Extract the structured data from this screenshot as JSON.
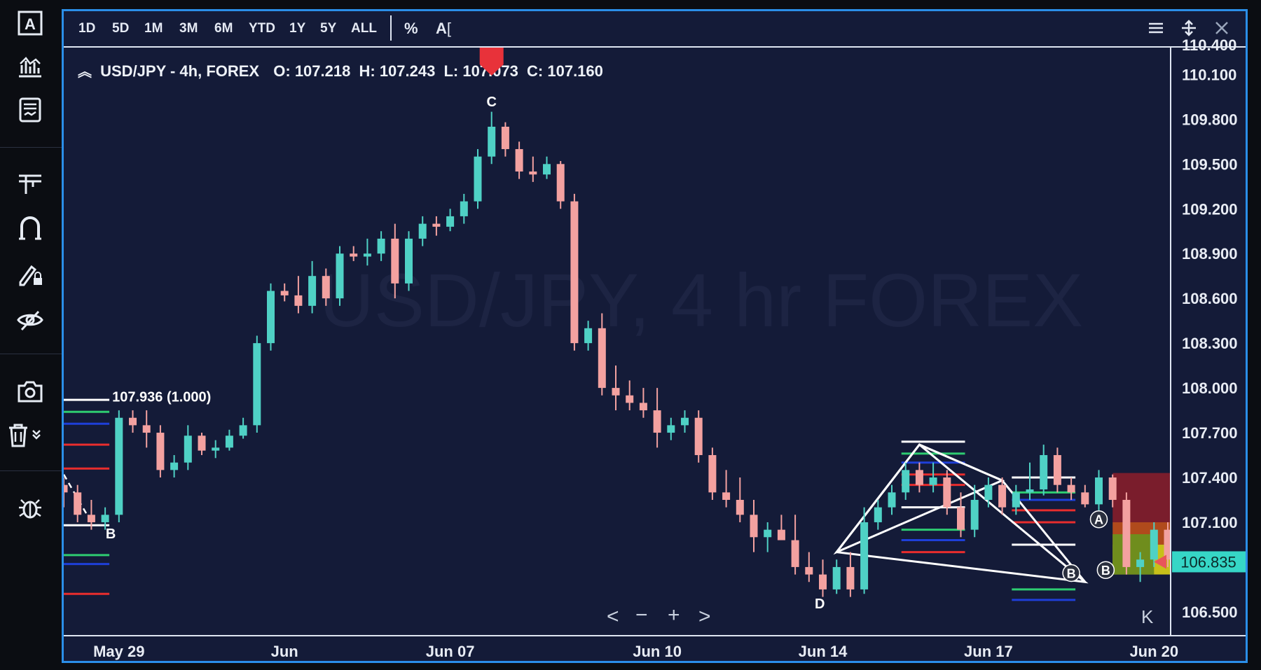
{
  "toolbar": {
    "timeframes": [
      "1D",
      "5D",
      "1M",
      "3M",
      "6M",
      "YTD",
      "1Y",
      "5Y",
      "ALL"
    ],
    "percent_label": "%",
    "text_tool_label": "A"
  },
  "sidebar": {
    "icons": [
      "text-tool-icon",
      "chart-type-icon",
      "indicators-icon",
      "line-tool-icon",
      "magnet-icon",
      "lock-drawing-icon",
      "hide-drawings-icon",
      "camera-icon",
      "trash-icon",
      "bug-icon"
    ]
  },
  "legend": {
    "symbol": "USD/JPY - 4h, FOREX",
    "open_label": "O:",
    "open": "107.218",
    "high_label": "H:",
    "high": "107.243",
    "low_label": "L:",
    "low": "107.073",
    "close_label": "C:",
    "close": "107.160"
  },
  "watermark": "USD/JPY, 4 hr FOREX",
  "nav": {
    "left": "<",
    "minus": "−",
    "plus": "+",
    "right": ">",
    "end": "K"
  },
  "chart_data": {
    "type": "candlestick",
    "symbol": "USD/JPY",
    "interval": "4h",
    "last_price": "106.835",
    "y_ticks": [
      "110.100",
      "109.800",
      "109.500",
      "109.200",
      "108.900",
      "108.600",
      "108.300",
      "108.000",
      "107.700",
      "107.400",
      "107.100",
      "106.500"
    ],
    "y_top_cut": "110.400",
    "ylim": [
      106.34,
      110.28
    ],
    "x_ticks": [
      {
        "label": "May 29",
        "idx": 4
      },
      {
        "label": "Jun",
        "idx": 16
      },
      {
        "label": "Jun 07",
        "idx": 28
      },
      {
        "label": "Jun 10",
        "idx": 43
      },
      {
        "label": "Jun 14",
        "idx": 55
      },
      {
        "label": "Jun 17",
        "idx": 67
      },
      {
        "label": "Jun 20",
        "idx": 79
      }
    ],
    "candles": [
      {
        "o": 107.35,
        "h": 107.4,
        "l": 107.2,
        "c": 107.3
      },
      {
        "o": 107.3,
        "h": 107.35,
        "l": 107.1,
        "c": 107.15
      },
      {
        "o": 107.15,
        "h": 107.25,
        "l": 107.05,
        "c": 107.1
      },
      {
        "o": 107.1,
        "h": 107.2,
        "l": 107.05,
        "c": 107.15
      },
      {
        "o": 107.15,
        "h": 107.85,
        "l": 107.1,
        "c": 107.8
      },
      {
        "o": 107.8,
        "h": 107.85,
        "l": 107.7,
        "c": 107.75
      },
      {
        "o": 107.75,
        "h": 107.85,
        "l": 107.6,
        "c": 107.7
      },
      {
        "o": 107.7,
        "h": 107.75,
        "l": 107.4,
        "c": 107.45
      },
      {
        "o": 107.45,
        "h": 107.55,
        "l": 107.4,
        "c": 107.5
      },
      {
        "o": 107.5,
        "h": 107.75,
        "l": 107.45,
        "c": 107.68
      },
      {
        "o": 107.68,
        "h": 107.7,
        "l": 107.55,
        "c": 107.58
      },
      {
        "o": 107.58,
        "h": 107.65,
        "l": 107.53,
        "c": 107.6
      },
      {
        "o": 107.6,
        "h": 107.72,
        "l": 107.58,
        "c": 107.68
      },
      {
        "o": 107.68,
        "h": 107.8,
        "l": 107.66,
        "c": 107.75
      },
      {
        "o": 107.75,
        "h": 108.35,
        "l": 107.7,
        "c": 108.3
      },
      {
        "o": 108.3,
        "h": 108.7,
        "l": 108.25,
        "c": 108.65
      },
      {
        "o": 108.65,
        "h": 108.7,
        "l": 108.58,
        "c": 108.62
      },
      {
        "o": 108.62,
        "h": 108.75,
        "l": 108.5,
        "c": 108.55
      },
      {
        "o": 108.55,
        "h": 108.85,
        "l": 108.5,
        "c": 108.75
      },
      {
        "o": 108.75,
        "h": 108.8,
        "l": 108.55,
        "c": 108.6
      },
      {
        "o": 108.6,
        "h": 108.95,
        "l": 108.55,
        "c": 108.9
      },
      {
        "o": 108.9,
        "h": 108.95,
        "l": 108.85,
        "c": 108.88
      },
      {
        "o": 108.88,
        "h": 109.0,
        "l": 108.82,
        "c": 108.9
      },
      {
        "o": 108.9,
        "h": 109.05,
        "l": 108.85,
        "c": 109.0
      },
      {
        "o": 109.0,
        "h": 109.1,
        "l": 108.6,
        "c": 108.7
      },
      {
        "o": 108.7,
        "h": 109.05,
        "l": 108.65,
        "c": 109.0
      },
      {
        "o": 109.0,
        "h": 109.15,
        "l": 108.95,
        "c": 109.1
      },
      {
        "o": 109.1,
        "h": 109.15,
        "l": 109.02,
        "c": 109.08
      },
      {
        "o": 109.08,
        "h": 109.2,
        "l": 109.05,
        "c": 109.15
      },
      {
        "o": 109.15,
        "h": 109.3,
        "l": 109.1,
        "c": 109.25
      },
      {
        "o": 109.25,
        "h": 109.6,
        "l": 109.2,
        "c": 109.55
      },
      {
        "o": 109.55,
        "h": 109.85,
        "l": 109.5,
        "c": 109.75
      },
      {
        "o": 109.75,
        "h": 109.78,
        "l": 109.55,
        "c": 109.6
      },
      {
        "o": 109.6,
        "h": 109.65,
        "l": 109.4,
        "c": 109.45
      },
      {
        "o": 109.45,
        "h": 109.55,
        "l": 109.38,
        "c": 109.43
      },
      {
        "o": 109.43,
        "h": 109.55,
        "l": 109.4,
        "c": 109.5
      },
      {
        "o": 109.5,
        "h": 109.52,
        "l": 109.2,
        "c": 109.25
      },
      {
        "o": 109.25,
        "h": 109.3,
        "l": 108.25,
        "c": 108.3
      },
      {
        "o": 108.3,
        "h": 108.45,
        "l": 108.25,
        "c": 108.4
      },
      {
        "o": 108.4,
        "h": 108.5,
        "l": 107.95,
        "c": 108.0
      },
      {
        "o": 108.0,
        "h": 108.15,
        "l": 107.85,
        "c": 107.95
      },
      {
        "o": 107.95,
        "h": 108.05,
        "l": 107.85,
        "c": 107.9
      },
      {
        "o": 107.9,
        "h": 108.0,
        "l": 107.8,
        "c": 107.85
      },
      {
        "o": 107.85,
        "h": 108.0,
        "l": 107.6,
        "c": 107.7
      },
      {
        "o": 107.7,
        "h": 107.8,
        "l": 107.65,
        "c": 107.75
      },
      {
        "o": 107.75,
        "h": 107.85,
        "l": 107.7,
        "c": 107.8
      },
      {
        "o": 107.8,
        "h": 107.85,
        "l": 107.5,
        "c": 107.55
      },
      {
        "o": 107.55,
        "h": 107.6,
        "l": 107.25,
        "c": 107.3
      },
      {
        "o": 107.3,
        "h": 107.45,
        "l": 107.2,
        "c": 107.25
      },
      {
        "o": 107.25,
        "h": 107.4,
        "l": 107.1,
        "c": 107.15
      },
      {
        "o": 107.15,
        "h": 107.25,
        "l": 106.9,
        "c": 107.0
      },
      {
        "o": 107.0,
        "h": 107.1,
        "l": 106.9,
        "c": 107.05
      },
      {
        "o": 107.05,
        "h": 107.15,
        "l": 107.0,
        "c": 106.98
      },
      {
        "o": 106.98,
        "h": 107.15,
        "l": 106.75,
        "c": 106.8
      },
      {
        "o": 106.8,
        "h": 106.9,
        "l": 106.7,
        "c": 106.75
      },
      {
        "o": 106.75,
        "h": 106.85,
        "l": 106.6,
        "c": 106.65
      },
      {
        "o": 106.65,
        "h": 106.85,
        "l": 106.62,
        "c": 106.8
      },
      {
        "o": 106.8,
        "h": 106.9,
        "l": 106.6,
        "c": 106.65
      },
      {
        "o": 106.65,
        "h": 107.2,
        "l": 106.62,
        "c": 107.1
      },
      {
        "o": 107.1,
        "h": 107.25,
        "l": 107.05,
        "c": 107.2
      },
      {
        "o": 107.2,
        "h": 107.35,
        "l": 107.15,
        "c": 107.3
      },
      {
        "o": 107.3,
        "h": 107.5,
        "l": 107.25,
        "c": 107.45
      },
      {
        "o": 107.45,
        "h": 107.5,
        "l": 107.3,
        "c": 107.35
      },
      {
        "o": 107.35,
        "h": 107.5,
        "l": 107.3,
        "c": 107.4
      },
      {
        "o": 107.4,
        "h": 107.45,
        "l": 107.15,
        "c": 107.2
      },
      {
        "o": 107.2,
        "h": 107.3,
        "l": 107.0,
        "c": 107.05
      },
      {
        "o": 107.05,
        "h": 107.35,
        "l": 107.0,
        "c": 107.25
      },
      {
        "o": 107.25,
        "h": 107.4,
        "l": 107.2,
        "c": 107.35
      },
      {
        "o": 107.35,
        "h": 107.4,
        "l": 107.15,
        "c": 107.2
      },
      {
        "o": 107.2,
        "h": 107.35,
        "l": 107.15,
        "c": 107.3
      },
      {
        "o": 107.3,
        "h": 107.5,
        "l": 107.25,
        "c": 107.32
      },
      {
        "o": 107.32,
        "h": 107.62,
        "l": 107.28,
        "c": 107.55
      },
      {
        "o": 107.55,
        "h": 107.6,
        "l": 107.3,
        "c": 107.35
      },
      {
        "o": 107.35,
        "h": 107.4,
        "l": 107.25,
        "c": 107.3
      },
      {
        "o": 107.3,
        "h": 107.35,
        "l": 107.2,
        "c": 107.22
      },
      {
        "o": 107.22,
        "h": 107.45,
        "l": 107.18,
        "c": 107.4
      },
      {
        "o": 107.4,
        "h": 107.42,
        "l": 107.2,
        "c": 107.25
      },
      {
        "o": 107.25,
        "h": 107.3,
        "l": 106.75,
        "c": 106.8
      },
      {
        "o": 106.8,
        "h": 106.9,
        "l": 106.7,
        "c": 106.85
      },
      {
        "o": 106.85,
        "h": 107.1,
        "l": 106.8,
        "c": 107.05
      },
      {
        "o": 107.05,
        "h": 107.1,
        "l": 106.8,
        "c": 106.85
      },
      {
        "o": 106.85,
        "h": 106.95,
        "l": 106.78,
        "c": 106.9
      },
      {
        "o": 106.9,
        "h": 107.0,
        "l": 106.82,
        "c": 106.88
      },
      {
        "o": 106.88,
        "h": 106.98,
        "l": 106.82,
        "c": 106.9
      },
      {
        "o": 106.9,
        "h": 106.95,
        "l": 106.8,
        "c": 106.85
      }
    ],
    "annotations": [
      {
        "label": "107.936 (1.000)",
        "price": 107.936
      },
      {
        "label": "C",
        "price": 109.84
      },
      {
        "label": "D",
        "price": 106.55
      },
      {
        "label": "B",
        "price": 107.02
      },
      {
        "label": "A",
        "price": 107.12
      },
      {
        "label": "B",
        "price": 106.78
      },
      {
        "label": "B",
        "price": 106.76
      }
    ],
    "colors": {
      "up": "#4fd1c5",
      "down": "#f3a1a0",
      "background": "#141b38",
      "last_price_bg": "#36d6c6",
      "marker": "#e8323a"
    }
  }
}
